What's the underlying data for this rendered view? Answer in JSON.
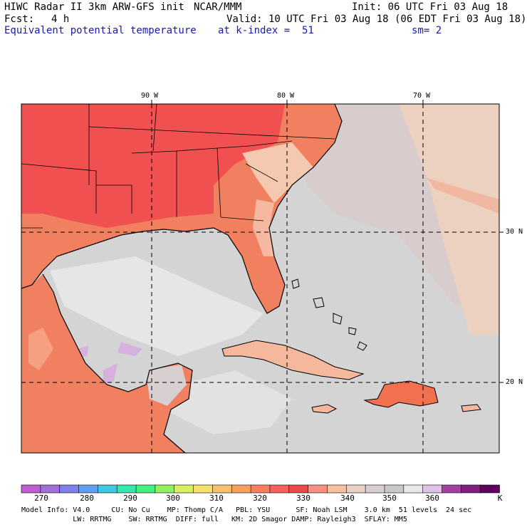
{
  "header": {
    "model_title": "HIWC Radar II 3km ARW-GFS init",
    "org": "NCAR/MMM",
    "init": "Init: 06 UTC Fri 03 Aug 18",
    "fcst_label": "Fcst:",
    "fcst_value": "4 h",
    "valid": "Valid: 10 UTC Fri 03 Aug 18 (06 EDT Fri 03 Aug 18)",
    "field": "Equivalent potential temperature",
    "level": "at k-index =  51",
    "smooth": "sm= 2"
  },
  "map": {
    "lon_labels": [
      "90 W",
      "80 W",
      "70 W"
    ],
    "lat_labels": [
      "30 N",
      "20 N"
    ],
    "land_color": "#f08060",
    "hot_color": "#f05050",
    "sea_color": "#d4d4d4"
  },
  "colorbar": {
    "ticks": [
      "270",
      "280",
      "290",
      "300",
      "310",
      "320",
      "330",
      "340",
      "350",
      "360"
    ],
    "unit": "K",
    "colors": [
      "#c060d0",
      "#a070d8",
      "#8080e8",
      "#60a0f0",
      "#40c8e0",
      "#30e8b0",
      "#40f080",
      "#90f060",
      "#d8f060",
      "#f8e070",
      "#f8c070",
      "#f8a060",
      "#f88060",
      "#f86060",
      "#f04848",
      "#f89080",
      "#f8c0a0",
      "#e8d0c0",
      "#d8d0d0",
      "#c8c8c8",
      "#e8e8e8",
      "#e0c0e8",
      "#a040a0",
      "#802080",
      "#600060"
    ]
  },
  "footer": {
    "line1": "Model Info: V4.0     CU: No Cu    MP: Thomp C/A   PBL: YSU      SF: Noah LSM    3.0 km  51 levels  24 sec",
    "line2": "            LW: RRTMG    SW: RRTMG  DIFF: full   KM: 2D Smagor DAMP: Rayleigh3  SFLAY: MM5"
  }
}
